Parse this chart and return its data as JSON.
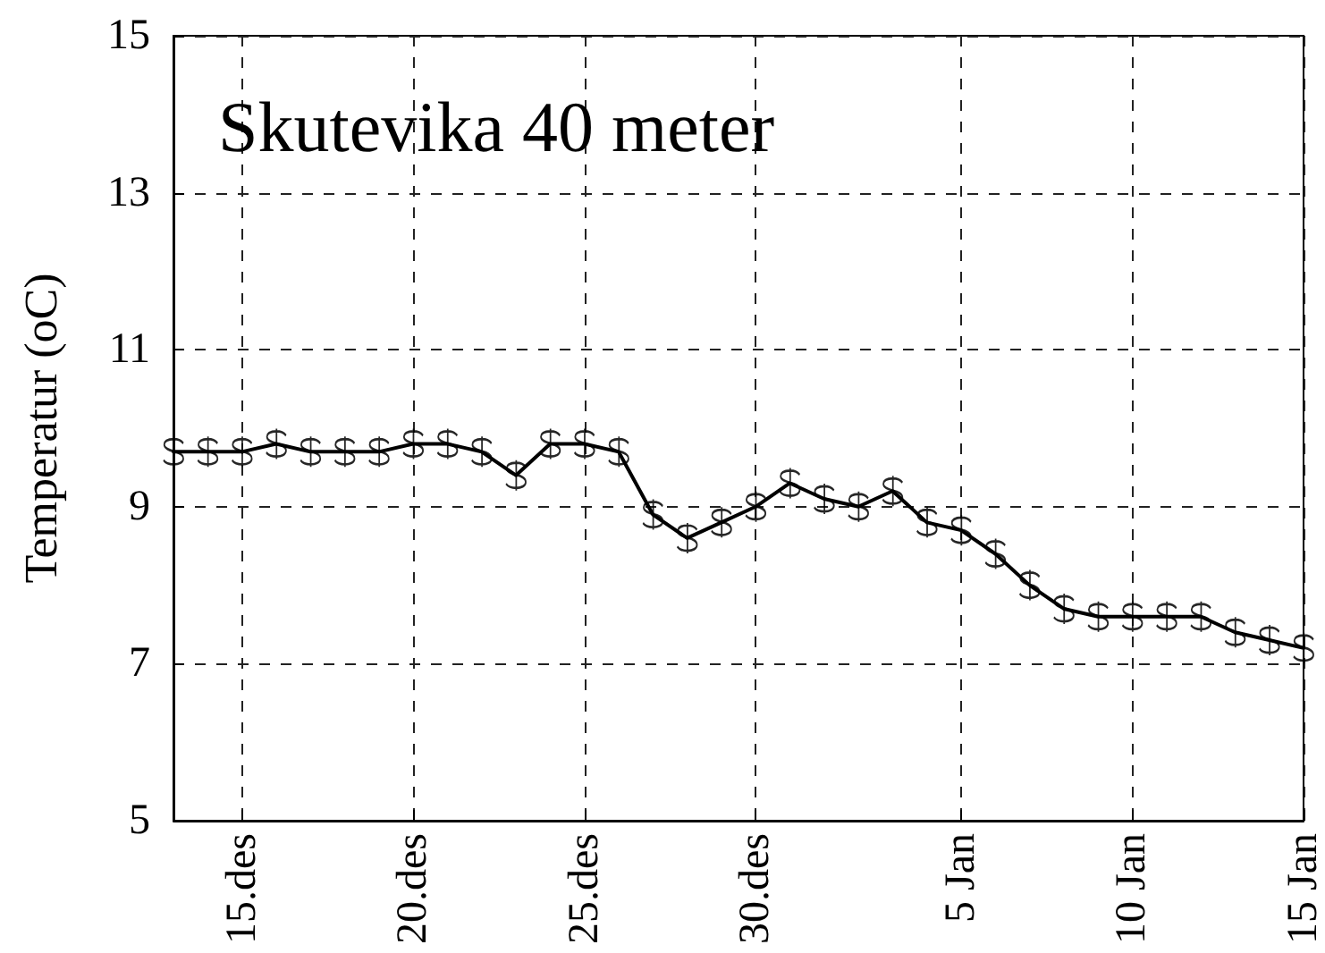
{
  "chart_data": {
    "type": "line",
    "title": "Skutevika 40 meter",
    "ylabel": "Temperatur (oC)",
    "categories": [
      null,
      null,
      "15.des",
      null,
      null,
      null,
      null,
      "20.des",
      null,
      null,
      null,
      null,
      "25.des",
      null,
      null,
      null,
      null,
      "30.des",
      null,
      null,
      null,
      null,
      null,
      "5 Jan",
      null,
      null,
      null,
      null,
      "10 Jan",
      null,
      null,
      null,
      null,
      "15 Jan"
    ],
    "series": [
      {
        "color": "#000000",
        "values": [
          9.7,
          9.7,
          9.7,
          9.8,
          9.7,
          9.7,
          9.7,
          9.8,
          9.8,
          9.7,
          9.4,
          9.8,
          9.8,
          9.7,
          8.9,
          8.6,
          8.8,
          9.0,
          9.3,
          9.1,
          9.0,
          9.2,
          8.8,
          8.7,
          8.4,
          8.0,
          7.7,
          7.6,
          7.6,
          7.6,
          7.6,
          7.4,
          7.3,
          7.2
        ]
      }
    ],
    "ylim": [
      5,
      15
    ],
    "yticks": [
      5,
      7,
      9,
      11,
      13,
      15
    ],
    "grid": true,
    "marker": "cross",
    "line_style": "solid"
  }
}
